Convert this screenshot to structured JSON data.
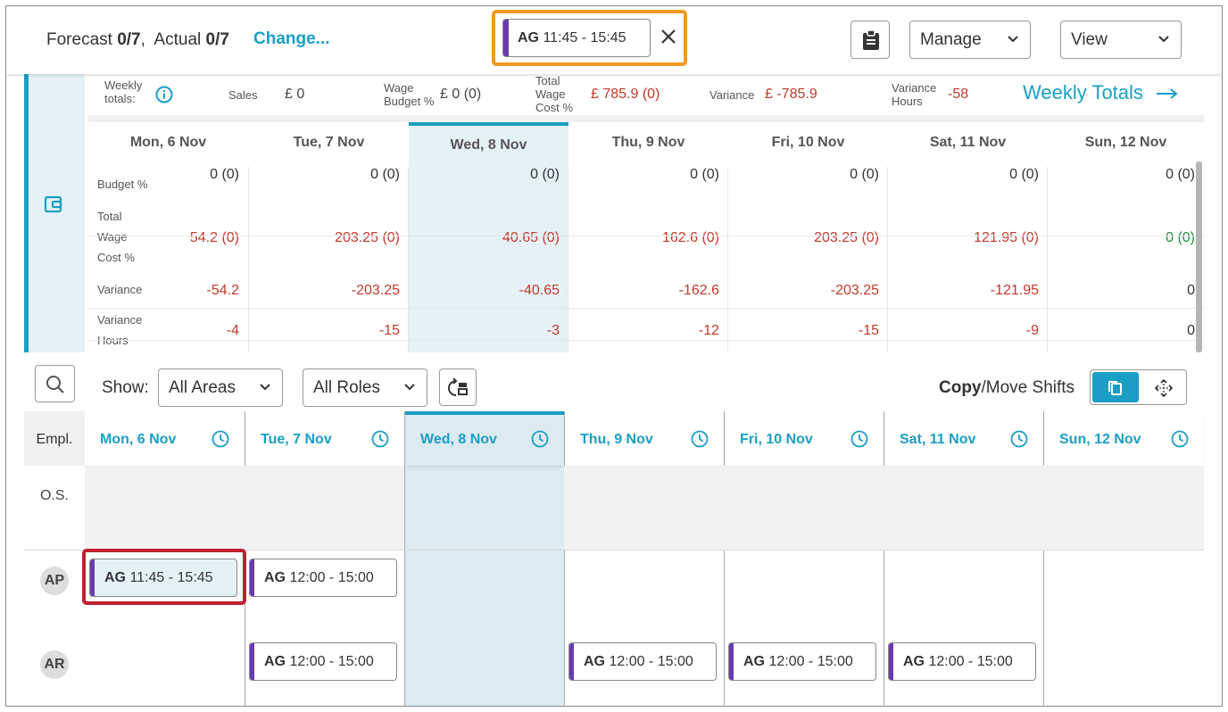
{
  "topbar": {
    "forecast_label": "Forecast",
    "forecast_value": "0/7",
    "actual_label": "Actual",
    "actual_value": "0/7",
    "change_link": "Change...",
    "selected_shift": {
      "initials": "AG",
      "time": "11:45 - 15:45"
    },
    "manage_label": "Manage",
    "view_label": "View"
  },
  "weekly_totals": {
    "label": "Weekly totals:",
    "sales_label": "Sales",
    "sales_value": "£ 0",
    "wage_budget_label": "Wage Budget %",
    "wage_budget_value": "£ 0 (0)",
    "total_wage_cost_label": "Total Wage Cost %",
    "total_wage_cost_value": "£ 785.9 (0)",
    "variance_label": "Variance",
    "variance_value": "£ -785.9",
    "variance_hours_label": "Variance Hours",
    "variance_hours_value": "-58",
    "link": "Weekly Totals"
  },
  "budget_table": {
    "row_labels": {
      "budget": "Budget %",
      "total_wage": "Total Wage Cost %",
      "variance": "Variance",
      "variance_hours": "Variance Hours"
    },
    "days": [
      {
        "header": "Mon, 6 Nov",
        "budget": "0 (0)",
        "twc": "54.2 (0)",
        "variance": "-54.2",
        "vhours": "-4"
      },
      {
        "header": "Tue, 7 Nov",
        "budget": "0 (0)",
        "twc": "203.25 (0)",
        "variance": "-203.25",
        "vhours": "-15"
      },
      {
        "header": "Wed, 8 Nov",
        "budget": "0 (0)",
        "twc": "40.65 (0)",
        "variance": "-40.65",
        "vhours": "-3"
      },
      {
        "header": "Thu, 9 Nov",
        "budget": "0 (0)",
        "twc": "162.6 (0)",
        "variance": "-162.6",
        "vhours": "-12"
      },
      {
        "header": "Fri, 10 Nov",
        "budget": "0 (0)",
        "twc": "203.25 (0)",
        "variance": "-203.25",
        "vhours": "-15"
      },
      {
        "header": "Sat, 11 Nov",
        "budget": "0 (0)",
        "twc": "121.95 (0)",
        "variance": "-121.95",
        "vhours": "-9"
      },
      {
        "header": "Sun, 12 Nov",
        "budget": "0 (0)",
        "twc": "0 (0)",
        "variance": "0",
        "vhours": "0"
      }
    ]
  },
  "filters": {
    "show_label": "Show:",
    "areas": "All Areas",
    "roles": "All Roles",
    "copy_label": "Copy",
    "move_label": "/Move Shifts"
  },
  "schedule": {
    "empl_header": "Empl.",
    "open_shifts_label": "O.S.",
    "days": [
      "Mon, 6 Nov",
      "Tue, 7 Nov",
      "Wed, 8 Nov",
      "Thu, 9 Nov",
      "Fri, 10 Nov",
      "Sat, 11 Nov",
      "Sun, 12 Nov"
    ],
    "employees": [
      {
        "initials": "AP",
        "shifts": [
          {
            "day": 0,
            "code": "AG",
            "time": "11:45 - 15:45",
            "selected": true
          },
          {
            "day": 1,
            "code": "AG",
            "time": "12:00 - 15:00"
          }
        ]
      },
      {
        "initials": "AR",
        "shifts": [
          {
            "day": 1,
            "code": "AG",
            "time": "12:00 - 15:00"
          },
          {
            "day": 3,
            "code": "AG",
            "time": "12:00 - 15:00"
          },
          {
            "day": 4,
            "code": "AG",
            "time": "12:00 - 15:00"
          },
          {
            "day": 5,
            "code": "AG",
            "time": "12:00 - 15:00"
          }
        ]
      }
    ]
  },
  "colors": {
    "accent": "#1a9ec5",
    "shift_bar": "#6a3bb0",
    "negative": "#c0392b",
    "positive": "#1e8e3e",
    "selection_outline": "#f39a1e",
    "highlight_outline": "#c0202f"
  },
  "icons": {
    "close": "close-icon",
    "clipboard": "clipboard-icon",
    "chevron": "chevron-down-icon",
    "info": "info-icon",
    "wallet": "wallet-icon",
    "search": "search-icon",
    "refresh": "refresh-layout-icon",
    "copy": "copy-icon",
    "move": "move-arrows-icon",
    "clock": "clock-icon",
    "arrow_right": "arrow-right-icon"
  }
}
